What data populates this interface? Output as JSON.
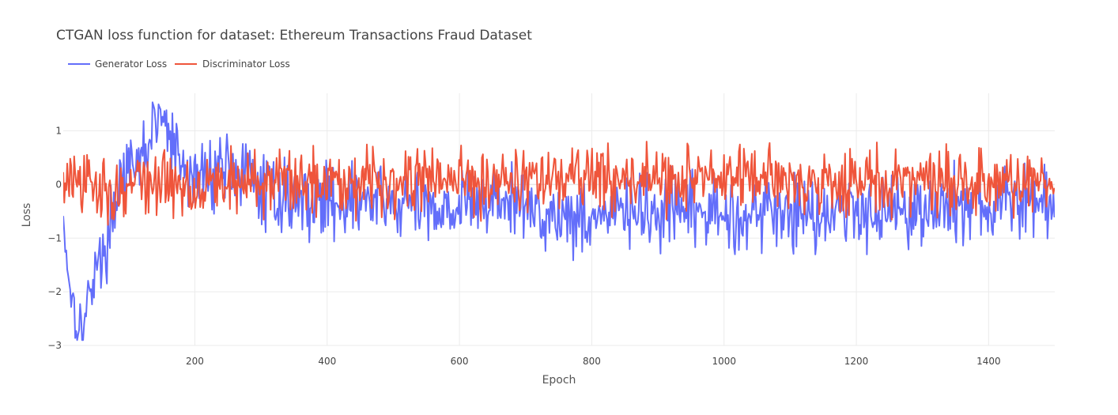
{
  "chart_data": {
    "type": "line",
    "title": "CTGAN loss function for dataset: Ethereum Transactions Fraud Dataset",
    "xlabel": "Epoch",
    "ylabel": "Loss",
    "xlim": [
      1,
      1500
    ],
    "ylim": [
      -3,
      1.7
    ],
    "x_ticks": [
      200,
      400,
      600,
      800,
      1000,
      1200,
      1400
    ],
    "y_ticks": [
      -3,
      -2,
      -1,
      0,
      1
    ],
    "grid": true,
    "legend_position": "top-left",
    "series": [
      {
        "name": "Generator Loss",
        "color": "#636efa",
        "x": [
          1,
          10,
          20,
          30,
          40,
          50,
          60,
          70,
          80,
          90,
          100,
          110,
          120,
          130,
          140,
          150,
          160,
          170,
          180,
          200,
          220,
          240,
          260,
          280,
          300,
          330,
          360,
          400,
          450,
          500,
          550,
          600,
          650,
          700,
          750,
          800,
          850,
          900,
          950,
          1000,
          1050,
          1100,
          1150,
          1200,
          1250,
          1300,
          1350,
          1400,
          1450,
          1500
        ],
        "values": [
          -0.6,
          -1.8,
          -2.4,
          -2.8,
          -2.1,
          -1.4,
          -1.5,
          -0.9,
          -0.3,
          0.3,
          0.1,
          0.2,
          0.5,
          0.8,
          1.1,
          1.3,
          0.9,
          0.6,
          0.3,
          0.1,
          0.2,
          0.4,
          0.3,
          0.1,
          -0.1,
          -0.2,
          -0.3,
          -0.3,
          -0.3,
          -0.4,
          -0.4,
          -0.4,
          -0.3,
          -0.4,
          -0.6,
          -0.6,
          -0.5,
          -0.6,
          -0.5,
          -0.6,
          -0.5,
          -0.5,
          -0.5,
          -0.5,
          -0.4,
          -0.5,
          -0.4,
          -0.4,
          -0.3,
          -0.4
        ]
      },
      {
        "name": "Discriminator Loss",
        "color": "#ef553b",
        "x": [
          1,
          10,
          20,
          30,
          40,
          50,
          60,
          70,
          80,
          90,
          100,
          110,
          120,
          130,
          140,
          150,
          160,
          170,
          180,
          200,
          220,
          240,
          260,
          280,
          300,
          330,
          360,
          400,
          450,
          500,
          550,
          600,
          650,
          700,
          750,
          800,
          850,
          900,
          950,
          1000,
          1050,
          1100,
          1150,
          1200,
          1250,
          1300,
          1350,
          1400,
          1450,
          1500
        ],
        "values": [
          0.0,
          0.1,
          0.0,
          -0.1,
          0.0,
          -0.1,
          0.0,
          -0.1,
          -0.2,
          -0.1,
          0.0,
          0.0,
          0.1,
          0.0,
          0.0,
          0.1,
          0.0,
          0.0,
          -0.1,
          0.0,
          0.1,
          0.0,
          0.1,
          0.0,
          0.1,
          0.0,
          0.1,
          0.1,
          0.1,
          0.1,
          0.1,
          0.1,
          0.1,
          0.1,
          0.1,
          0.1,
          0.1,
          0.1,
          0.1,
          0.1,
          0.1,
          0.1,
          0.0,
          0.1,
          0.0,
          0.1,
          0.0,
          0.0,
          0.0,
          0.0
        ]
      }
    ]
  }
}
